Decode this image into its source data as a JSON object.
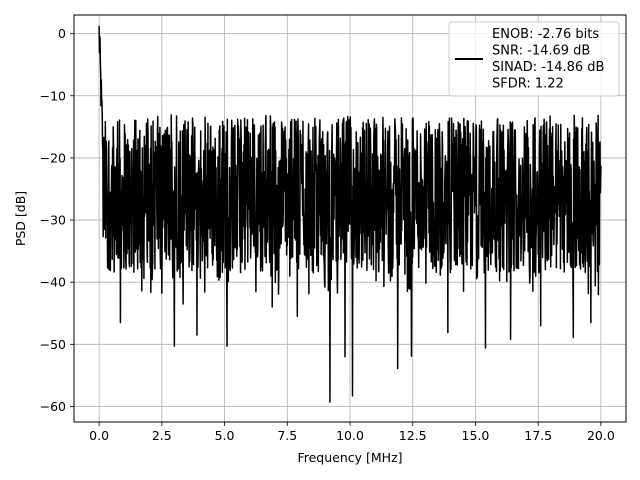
{
  "chart_data": {
    "type": "line",
    "title": "",
    "xlabel": "Frequency [MHz]",
    "ylabel": "PSD [dB]",
    "xlim": [
      -1.0,
      21.0
    ],
    "ylim": [
      -62.5,
      3.0
    ],
    "x_ticks": [
      0.0,
      2.5,
      5.0,
      7.5,
      10.0,
      12.5,
      15.0,
      17.5,
      20.0
    ],
    "x_tick_labels": [
      "0.0",
      "2.5",
      "5.0",
      "7.5",
      "10.0",
      "12.5",
      "15.0",
      "17.5",
      "20.0"
    ],
    "y_ticks": [
      0,
      -10,
      -20,
      -30,
      -40,
      -50,
      -60
    ],
    "y_tick_labels": [
      "0",
      "−10",
      "−20",
      "−30",
      "−40",
      "−50",
      "−60"
    ],
    "grid": true,
    "legend_position": "top-right",
    "legend_lines": [
      "ENOB: -2.76 bits",
      "SNR: -14.69 dB",
      "SINAD: -14.86 dB",
      "SFDR: 1.22"
    ],
    "series": [
      {
        "color": "#000000",
        "x_range": [
          0.0,
          20.0
        ],
        "peak_db": 0,
        "typical_upper_db": -16,
        "typical_lower_db": -36,
        "minimum_db": -59.3,
        "deep_dips": [
          {
            "x": 0.85,
            "y": -46.5
          },
          {
            "x": 3.0,
            "y": -50.3
          },
          {
            "x": 3.35,
            "y": -43.5
          },
          {
            "x": 3.9,
            "y": -48.5
          },
          {
            "x": 5.1,
            "y": -50.3
          },
          {
            "x": 6.9,
            "y": -44.0
          },
          {
            "x": 7.9,
            "y": -45.5
          },
          {
            "x": 9.2,
            "y": -59.3
          },
          {
            "x": 9.8,
            "y": -52.0
          },
          {
            "x": 10.1,
            "y": -58.3
          },
          {
            "x": 11.9,
            "y": -53.9
          },
          {
            "x": 12.45,
            "y": -51.9
          },
          {
            "x": 13.9,
            "y": -48.1
          },
          {
            "x": 15.4,
            "y": -50.6
          },
          {
            "x": 16.4,
            "y": -49.2
          },
          {
            "x": 17.6,
            "y": -47.0
          },
          {
            "x": 18.9,
            "y": -48.9
          },
          {
            "x": 19.6,
            "y": -46.5
          }
        ]
      }
    ]
  }
}
